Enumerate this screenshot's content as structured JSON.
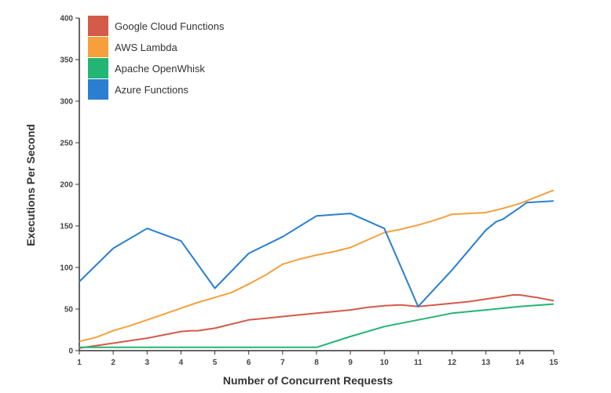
{
  "chart_data": {
    "type": "line",
    "xlabel": "Number of Concurrent Requests",
    "ylabel": "Executions Per Second",
    "xlim": [
      1,
      15
    ],
    "ylim": [
      0,
      400
    ],
    "x_ticks": [
      1,
      2,
      3,
      4,
      5,
      6,
      7,
      8,
      9,
      10,
      11,
      12,
      13,
      14,
      15
    ],
    "y_ticks": [
      0,
      50,
      100,
      150,
      200,
      250,
      300,
      350,
      400
    ],
    "grid": false,
    "legend_position": "top-left",
    "series": [
      {
        "name": "Google Cloud Functions",
        "color": "#d45a4a",
        "x": [
          1,
          1.5,
          2,
          2.5,
          3,
          3.5,
          4,
          4.3,
          4.5,
          5,
          5.5,
          6,
          6.5,
          7,
          7.5,
          8,
          8.5,
          9,
          9.5,
          10,
          10.5,
          11,
          11.5,
          12,
          12.5,
          13,
          13.5,
          13.8,
          14,
          14.5,
          15
        ],
        "y": [
          3,
          6,
          9,
          12,
          15,
          19,
          23,
          24,
          24,
          27,
          32,
          37,
          39,
          41,
          43,
          45,
          47,
          49,
          52,
          54,
          55,
          53,
          55,
          57,
          59,
          62,
          65,
          67,
          67,
          64,
          60
        ]
      },
      {
        "name": "AWS Lambda",
        "color": "#f5a03c",
        "x": [
          1,
          1.5,
          2,
          2.5,
          3,
          3.5,
          4,
          4.5,
          5,
          5.5,
          6,
          6.5,
          7,
          7.5,
          8,
          8.5,
          9,
          9.5,
          10,
          10.5,
          11,
          11.5,
          12,
          12.5,
          13,
          13.5,
          14,
          14.5,
          15
        ],
        "y": [
          11,
          16,
          24,
          30,
          37,
          44,
          51,
          58,
          64,
          70,
          80,
          91,
          104,
          110,
          115,
          119,
          124,
          133,
          142,
          146,
          151,
          157,
          164,
          165,
          166,
          171,
          177,
          185,
          193
        ]
      },
      {
        "name": "Apache OpenWhisk",
        "color": "#22b573",
        "x": [
          1,
          2,
          3,
          4,
          5,
          6,
          7,
          8,
          9,
          10,
          11,
          12,
          13,
          14,
          15
        ],
        "y": [
          4,
          4,
          4,
          4,
          4,
          4,
          4,
          4,
          17,
          29,
          37,
          45,
          49,
          53,
          56
        ]
      },
      {
        "name": "Azure Functions",
        "color": "#2a7fd0",
        "x": [
          1,
          2,
          3,
          4,
          5,
          6,
          7,
          8,
          9,
          10,
          11,
          12,
          13,
          13.3,
          13.5,
          14,
          14.2,
          15
        ],
        "y": [
          83,
          123,
          147,
          132,
          75,
          117,
          137,
          162,
          165,
          147,
          53,
          97,
          145,
          155,
          158,
          172,
          178,
          180
        ]
      }
    ]
  }
}
